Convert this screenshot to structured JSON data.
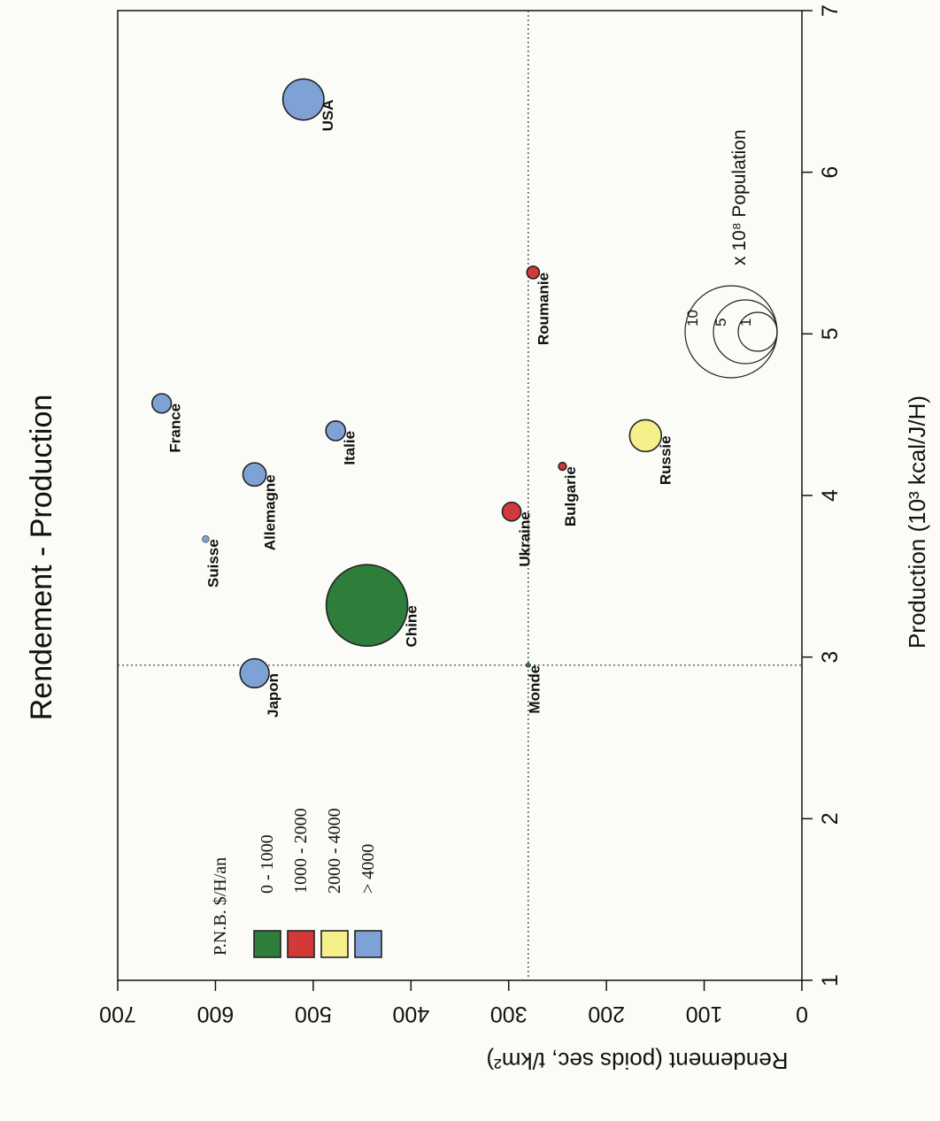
{
  "chart_data": {
    "type": "scatter",
    "title": "Rendement - Production",
    "xlabel": "Rendement (poids sec, t/km²)",
    "ylabel": "Production (10³ kcal/J/H)",
    "x_ticks": [
      "0",
      "100",
      "200",
      "300",
      "400",
      "500",
      "600",
      "700"
    ],
    "y_ticks": [
      "1",
      "2",
      "3",
      "4",
      "5",
      "6",
      "7"
    ],
    "xlim": [
      0,
      700
    ],
    "ylim": [
      1,
      7
    ],
    "reference_lines": {
      "rendement": 280,
      "production": 2.95
    },
    "grid": false,
    "legend_title": "P.N.B. $/H/an",
    "legend": [
      {
        "label": "0 - 1000",
        "color": "#2e7d3a"
      },
      {
        "label": "1000 - 2000",
        "color": "#d23a3a"
      },
      {
        "label": "2000 - 4000",
        "color": "#f6f08a"
      },
      {
        "label": "> 4000",
        "color": "#7ea2d6"
      }
    ],
    "size_legend": {
      "label": "x 10⁸ Population",
      "values": [
        "1",
        "5",
        "10"
      ]
    },
    "points": [
      {
        "name": "USA",
        "rendement": 510,
        "production": 6.45,
        "population": 2.5,
        "color": "#7ea2d6"
      },
      {
        "name": "France",
        "rendement": 655,
        "production": 4.57,
        "population": 0.55,
        "color": "#7ea2d6"
      },
      {
        "name": "Italie",
        "rendement": 477,
        "production": 4.4,
        "population": 0.57,
        "color": "#7ea2d6"
      },
      {
        "name": "Allemagne",
        "rendement": 560,
        "production": 4.13,
        "population": 0.8,
        "color": "#7ea2d6"
      },
      {
        "name": "Suisse",
        "rendement": 610,
        "production": 3.73,
        "population": 0.07,
        "color": "#7ea2d6"
      },
      {
        "name": "Japon",
        "rendement": 560,
        "production": 2.9,
        "population": 1.25,
        "color": "#7ea2d6"
      },
      {
        "name": "Chine",
        "rendement": 445,
        "production": 3.32,
        "population": 11.5,
        "color": "#2e7d3a"
      },
      {
        "name": "Monde",
        "rendement": 280,
        "production": 2.95,
        "population": 0.02,
        "color": "#2e7d3a"
      },
      {
        "name": "Ukraine",
        "rendement": 297,
        "production": 3.9,
        "population": 0.52,
        "color": "#d23a3a"
      },
      {
        "name": "Bulgarie",
        "rendement": 245,
        "production": 4.18,
        "population": 0.09,
        "color": "#d23a3a"
      },
      {
        "name": "Roumanie",
        "rendement": 275,
        "production": 5.38,
        "population": 0.23,
        "color": "#d23a3a"
      },
      {
        "name": "Russie",
        "rendement": 160,
        "production": 4.37,
        "population": 1.5,
        "color": "#f6f08a"
      }
    ]
  }
}
